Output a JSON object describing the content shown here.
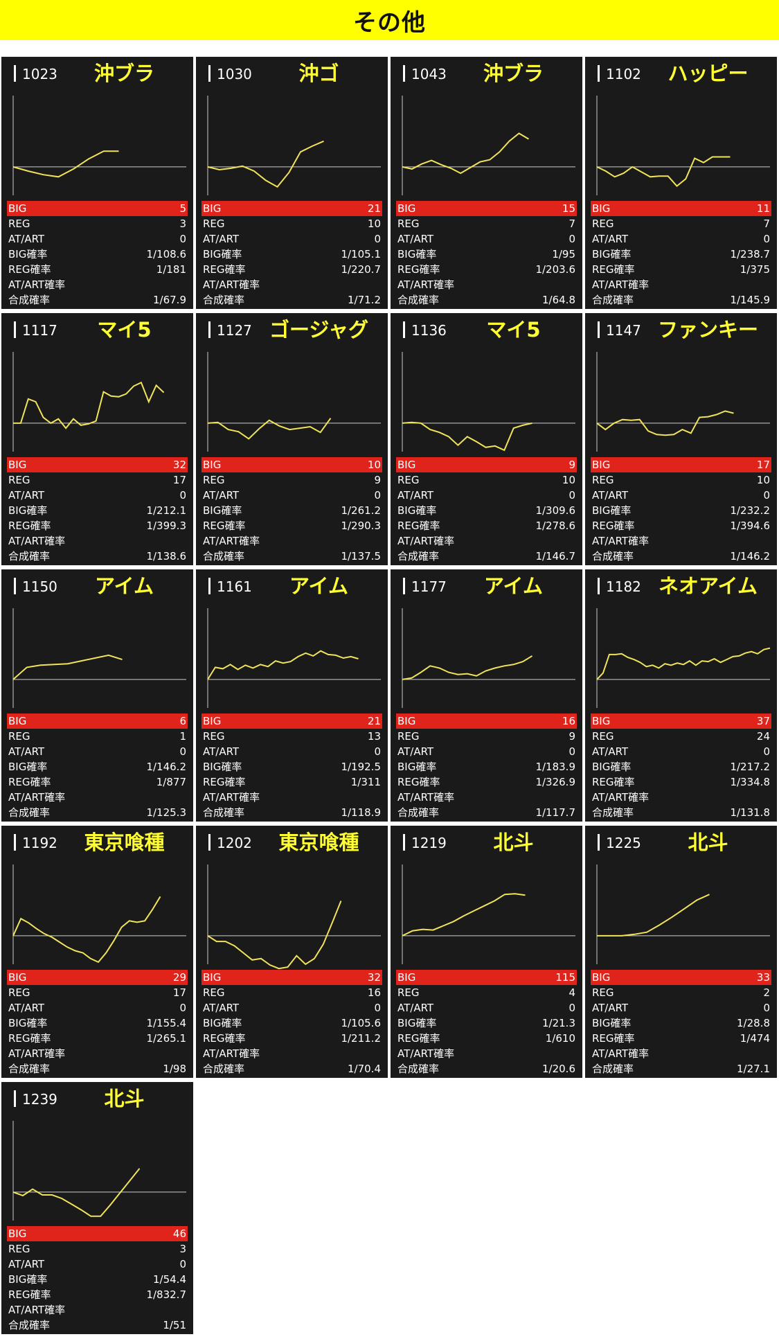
{
  "header": {
    "title": "その他",
    "bg_color": "#ffff00"
  },
  "labels": {
    "big": "BIG",
    "reg": "REG",
    "atart": "AT/ART",
    "big_rate": "BIG確率",
    "reg_rate": "REG確率",
    "atart_rate": "AT/ART確率",
    "total_rate": "合成確率"
  },
  "colors": {
    "card_bg": "#1a1a1a",
    "name": "#ffff33",
    "line": "#f2e45a",
    "big_row": "#e0231b"
  },
  "chart_data": [
    {
      "type": "line",
      "no": "1023",
      "name": "沖ブラ",
      "big": "5",
      "reg": "3",
      "atart": "0",
      "big_rate": "1/108.6",
      "reg_rate": "1/181",
      "atart_rate": "",
      "total_rate": "1/67.9",
      "ylim": [
        -40,
        100
      ],
      "y": [
        0,
        -6,
        -11,
        -14,
        -3,
        11,
        22,
        22
      ]
    },
    {
      "type": "line",
      "no": "1030",
      "name": "沖ゴ",
      "big": "21",
      "reg": "10",
      "atart": "0",
      "big_rate": "1/105.1",
      "reg_rate": "1/220.7",
      "atart_rate": "",
      "total_rate": "1/71.2",
      "ylim": [
        -40,
        100
      ],
      "y": [
        0,
        -4,
        -2,
        1,
        -6,
        -19,
        -28,
        -8,
        21,
        29,
        36
      ]
    },
    {
      "type": "line",
      "no": "1043",
      "name": "沖ブラ",
      "big": "15",
      "reg": "7",
      "atart": "0",
      "big_rate": "1/95",
      "reg_rate": "1/203.6",
      "atart_rate": "",
      "total_rate": "1/64.8",
      "ylim": [
        -40,
        100
      ],
      "y": [
        0,
        -3,
        4,
        9,
        3,
        -2,
        -9,
        -1,
        7,
        10,
        21,
        36,
        47,
        39
      ]
    },
    {
      "type": "line",
      "no": "1102",
      "name": "ハッピー",
      "big": "11",
      "reg": "7",
      "atart": "0",
      "big_rate": "1/238.7",
      "reg_rate": "1/375",
      "atart_rate": "",
      "total_rate": "1/145.9",
      "ylim": [
        -40,
        100
      ],
      "y": [
        0,
        -6,
        -14,
        -9,
        0,
        -7,
        -14,
        -13,
        -13,
        -27,
        -17,
        12,
        6,
        14,
        14,
        14
      ]
    },
    {
      "type": "line",
      "no": "1117",
      "name": "マイ5",
      "big": "32",
      "reg": "17",
      "atart": "0",
      "big_rate": "1/212.1",
      "reg_rate": "1/399.3",
      "atart_rate": "",
      "total_rate": "1/138.6",
      "ylim": [
        -40,
        100
      ],
      "y": [
        0,
        0,
        34,
        30,
        8,
        0,
        6,
        -7,
        6,
        -3,
        -1,
        3,
        44,
        38,
        37,
        41,
        52,
        57,
        30,
        53,
        43
      ]
    },
    {
      "type": "line",
      "no": "1127",
      "name": "ゴージャグ",
      "big": "10",
      "reg": "9",
      "atart": "0",
      "big_rate": "1/261.2",
      "reg_rate": "1/290.3",
      "atart_rate": "",
      "total_rate": "1/137.5",
      "ylim": [
        -40,
        100
      ],
      "y": [
        0,
        1,
        -9,
        -12,
        -22,
        -8,
        4,
        -4,
        -9,
        -7,
        -5,
        -13,
        7
      ]
    },
    {
      "type": "line",
      "no": "1136",
      "name": "マイ5",
      "big": "9",
      "reg": "10",
      "atart": "0",
      "big_rate": "1/309.6",
      "reg_rate": "1/278.6",
      "atart_rate": "",
      "total_rate": "1/146.7",
      "ylim": [
        -40,
        100
      ],
      "y": [
        0,
        1,
        0,
        -9,
        -13,
        -19,
        -31,
        -19,
        -26,
        -34,
        -32,
        -38,
        -7,
        -3,
        0
      ]
    },
    {
      "type": "line",
      "no": "1147",
      "name": "ファンキー",
      "big": "17",
      "reg": "10",
      "atart": "0",
      "big_rate": "1/232.2",
      "reg_rate": "1/394.6",
      "atart_rate": "",
      "total_rate": "1/146.2",
      "ylim": [
        -40,
        100
      ],
      "y": [
        0,
        -9,
        0,
        5,
        4,
        5,
        -11,
        -16,
        -17,
        -16,
        -9,
        -14,
        8,
        9,
        12,
        17,
        14
      ]
    },
    {
      "type": "line",
      "no": "1150",
      "name": "アイム",
      "big": "6",
      "reg": "1",
      "atart": "0",
      "big_rate": "1/146.2",
      "reg_rate": "1/877",
      "atart_rate": "",
      "total_rate": "1/125.3",
      "ylim": [
        -40,
        100
      ],
      "y": [
        0,
        17,
        20,
        21,
        22,
        26,
        30,
        34,
        28
      ]
    },
    {
      "type": "line",
      "no": "1161",
      "name": "アイム",
      "big": "21",
      "reg": "13",
      "atart": "0",
      "big_rate": "1/192.5",
      "reg_rate": "1/311",
      "atart_rate": "",
      "total_rate": "1/118.9",
      "ylim": [
        -40,
        100
      ],
      "y": [
        0,
        17,
        15,
        21,
        14,
        20,
        16,
        21,
        18,
        26,
        23,
        25,
        32,
        37,
        33,
        40,
        35,
        34,
        30,
        32,
        29
      ]
    },
    {
      "type": "line",
      "no": "1177",
      "name": "アイム",
      "big": "16",
      "reg": "9",
      "atart": "0",
      "big_rate": "1/183.9",
      "reg_rate": "1/326.9",
      "atart_rate": "",
      "total_rate": "1/117.7",
      "ylim": [
        -40,
        100
      ],
      "y": [
        0,
        2,
        10,
        19,
        16,
        10,
        7,
        8,
        5,
        12,
        16,
        19,
        21,
        25,
        33
      ]
    },
    {
      "type": "line",
      "no": "1182",
      "name": "ネオアイム",
      "big": "37",
      "reg": "24",
      "atart": "0",
      "big_rate": "1/217.2",
      "reg_rate": "1/334.8",
      "atart_rate": "",
      "total_rate": "1/131.8",
      "ylim": [
        -40,
        100
      ],
      "y": [
        0,
        9,
        35,
        35,
        36,
        31,
        28,
        24,
        18,
        20,
        16,
        22,
        20,
        23,
        21,
        26,
        20,
        26,
        25,
        29,
        24,
        28,
        32,
        33,
        37,
        39,
        36,
        42,
        44
      ]
    },
    {
      "type": "line",
      "no": "1192",
      "name": "東京喰種",
      "big": "29",
      "reg": "17",
      "atart": "0",
      "big_rate": "1/155.4",
      "reg_rate": "1/265.1",
      "atart_rate": "",
      "total_rate": "1/98",
      "ylim": [
        -40,
        100
      ],
      "y": [
        0,
        24,
        18,
        10,
        3,
        -2,
        -9,
        -16,
        -21,
        -24,
        -32,
        -37,
        -24,
        -7,
        12,
        21,
        19,
        21,
        37,
        55
      ]
    },
    {
      "type": "line",
      "no": "1202",
      "name": "東京喰種",
      "big": "32",
      "reg": "16",
      "atart": "0",
      "big_rate": "1/105.6",
      "reg_rate": "1/211.2",
      "atart_rate": "",
      "total_rate": "1/70.4",
      "ylim": [
        -40,
        100
      ],
      "y": [
        0,
        -8,
        -8,
        -14,
        -24,
        -34,
        -32,
        -41,
        -46,
        -44,
        -28,
        -40,
        -32,
        -12,
        18,
        49
      ]
    },
    {
      "type": "line",
      "no": "1219",
      "name": "北斗",
      "big": "115",
      "reg": "4",
      "atart": "0",
      "big_rate": "1/21.3",
      "reg_rate": "1/610",
      "atart_rate": "",
      "total_rate": "1/20.6",
      "ylim": [
        -40,
        100
      ],
      "y": [
        0,
        7,
        9,
        8,
        14,
        20,
        28,
        35,
        42,
        49,
        58,
        59,
        57
      ]
    },
    {
      "type": "line",
      "no": "1225",
      "name": "北斗",
      "big": "33",
      "reg": "2",
      "atart": "0",
      "big_rate": "1/28.8",
      "reg_rate": "1/474",
      "atart_rate": "",
      "total_rate": "1/27.1",
      "ylim": [
        -40,
        100
      ],
      "y": [
        0,
        0,
        0,
        2,
        5,
        15,
        26,
        38,
        50,
        58
      ]
    },
    {
      "type": "line",
      "no": "1239",
      "name": "北斗",
      "big": "46",
      "reg": "3",
      "atart": "0",
      "big_rate": "1/54.4",
      "reg_rate": "1/832.7",
      "atart_rate": "",
      "total_rate": "1/51",
      "ylim": [
        -40,
        100
      ],
      "y": [
        0,
        -5,
        4,
        -4,
        -4,
        -9,
        -17,
        -25,
        -34,
        -34,
        -18,
        -1,
        16,
        33
      ]
    }
  ]
}
